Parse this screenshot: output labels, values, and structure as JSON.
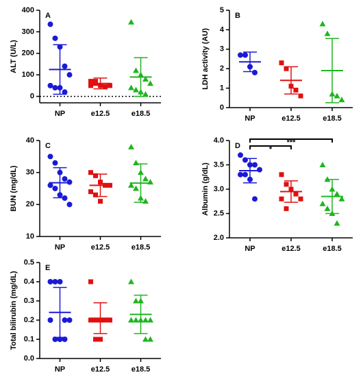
{
  "chart_data": [
    {
      "type": "dot",
      "panel_label": "A",
      "ylabel": "ALT (U/L)",
      "categories": [
        "NP",
        "e12.5",
        "e18.5"
      ],
      "colors": [
        "#1a1ad6",
        "#e01010",
        "#1fb51f"
      ],
      "markers": [
        "circle",
        "square",
        "triangle"
      ],
      "points": [
        [
          335,
          270,
          230,
          140,
          100,
          50,
          40,
          40,
          20
        ],
        [
          70,
          70,
          50,
          45,
          50,
          50,
          60
        ],
        [
          345,
          120,
          100,
          80,
          60,
          40,
          30,
          20,
          10
        ]
      ],
      "means": [
        125,
        60,
        90
      ],
      "sds": [
        115,
        25,
        90
      ],
      "ylim": [
        -30,
        400
      ],
      "yticks": [
        0,
        100,
        200,
        300,
        400
      ],
      "reference_line": 0
    },
    {
      "type": "dot",
      "panel_label": "B",
      "ylabel": "LDH activity (AU)",
      "categories": [
        "NP",
        "e12.5",
        "e18.5"
      ],
      "colors": [
        "#1a1ad6",
        "#e01010",
        "#1fb51f"
      ],
      "markers": [
        "circle",
        "square",
        "triangle"
      ],
      "points": [
        [
          2.7,
          2.7,
          2.1,
          1.8
        ],
        [
          2.3,
          2.0,
          1.1,
          0.9,
          0.6
        ],
        [
          4.3,
          3.8,
          0.7,
          0.6,
          0.4
        ]
      ],
      "means": [
        2.35,
        1.4,
        1.9
      ],
      "sds": [
        0.5,
        0.7,
        1.65
      ],
      "ylim": [
        0,
        5
      ],
      "yticks": [
        0,
        1,
        2,
        3,
        4,
        5
      ]
    },
    {
      "type": "dot",
      "panel_label": "C",
      "ylabel": "BUN (mg/dL)",
      "categories": [
        "NP",
        "e12.5",
        "e18.5"
      ],
      "colors": [
        "#1a1ad6",
        "#e01010",
        "#1fb51f"
      ],
      "markers": [
        "circle",
        "square",
        "triangle"
      ],
      "points": [
        [
          35,
          33,
          30,
          28,
          27,
          26,
          25,
          23,
          22,
          20
        ],
        [
          30,
          29,
          27,
          26,
          26,
          24,
          23,
          21
        ],
        [
          38,
          33,
          30,
          28,
          27,
          26,
          25,
          22,
          21
        ]
      ],
      "means": [
        26.8,
        26,
        26.7
      ],
      "sds": [
        4.7,
        3.5,
        6
      ],
      "ylim": [
        10,
        40
      ],
      "yticks": [
        10,
        20,
        30,
        40
      ]
    },
    {
      "type": "dot",
      "panel_label": "D",
      "ylabel": "Albumin (g/dL)",
      "categories": [
        "NP",
        "e12.5",
        "e18.5"
      ],
      "colors": [
        "#1a1ad6",
        "#e01010",
        "#1fb51f"
      ],
      "markers": [
        "circle",
        "square",
        "triangle"
      ],
      "points": [
        [
          3.7,
          3.6,
          3.5,
          3.5,
          3.4,
          3.3,
          3.3,
          3.2,
          2.8
        ],
        [
          3.3,
          3.1,
          3.0,
          2.9,
          2.8,
          2.8,
          2.6
        ],
        [
          3.5,
          3.2,
          3.0,
          2.9,
          2.8,
          2.7,
          2.6,
          2.5,
          2.3
        ]
      ],
      "means": [
        3.38,
        2.95,
        2.85
      ],
      "sds": [
        0.25,
        0.22,
        0.35
      ],
      "ylim": [
        2,
        4
      ],
      "yticks": [
        {
          "value": 2,
          "label": "2.0"
        },
        2.5,
        {
          "value": 3,
          "label": "3.0"
        },
        3.5,
        {
          "value": 4,
          "label": "4.0"
        }
      ],
      "brackets": [
        {
          "from": 0,
          "to": 1,
          "label": "*"
        },
        {
          "from": 0,
          "to": 2,
          "label": "***"
        }
      ]
    },
    {
      "type": "dot",
      "panel_label": "E",
      "ylabel": "Total bilirubin (mg/dL)",
      "categories": [
        "NP",
        "e12.5",
        "e18.5"
      ],
      "colors": [
        "#1a1ad6",
        "#e01010",
        "#1fb51f"
      ],
      "markers": [
        "circle",
        "square",
        "triangle"
      ],
      "points": [
        [
          0.4,
          0.4,
          0.4,
          0.2,
          0.2,
          0.2,
          0.1,
          0.1,
          0.1
        ],
        [
          0.4,
          0.2,
          0.2,
          0.2,
          0.2,
          0.2,
          0.1,
          0.1
        ],
        [
          0.4,
          0.3,
          0.3,
          0.2,
          0.2,
          0.2,
          0.2,
          0.2,
          0.1,
          0.1
        ]
      ],
      "means": [
        0.24,
        0.21,
        0.23
      ],
      "sds": [
        0.13,
        0.08,
        0.1
      ],
      "ylim": [
        0,
        0.5
      ],
      "yticks": [
        {
          "value": 0,
          "label": "0.0"
        },
        0.1,
        0.2,
        0.3,
        0.4,
        0.5
      ]
    }
  ]
}
